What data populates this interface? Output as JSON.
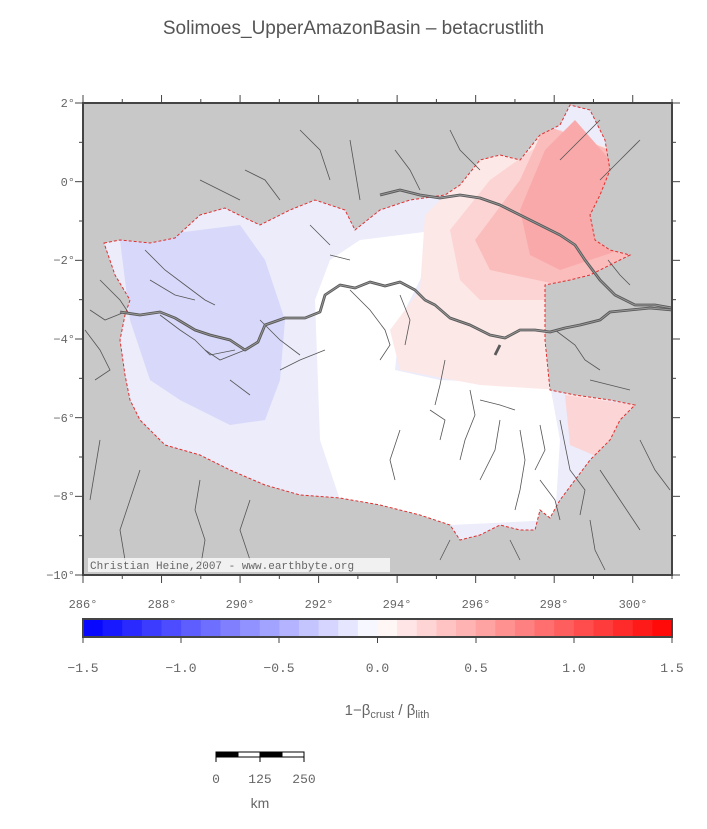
{
  "title": "Solimoes_UpperAmazonBasin – betacrustlith",
  "map": {
    "lat_ticks": [
      "2°",
      "0°",
      "−2°",
      "−4°",
      "−6°",
      "−8°",
      "−10°"
    ],
    "lon_ticks": [
      "286°",
      "288°",
      "290°",
      "292°",
      "294°",
      "296°",
      "298°",
      "300°"
    ],
    "lat_range": [
      -10,
      2
    ],
    "lon_range": [
      286,
      301
    ],
    "credit": "Christian Heine,2007 - www.earthbyte.org",
    "colors": {
      "background": "#c8c8c8",
      "basin_boundary": "#e03030",
      "rivers": "#555555",
      "frame": "#444444"
    }
  },
  "colorbar": {
    "tick_labels": [
      "−1.5",
      "−1.0",
      "−0.5",
      "0.0",
      "0.5",
      "1.0",
      "1.5"
    ],
    "range": [
      -1.5,
      1.5
    ],
    "label_prefix": "1−β",
    "label_sub1": "crust",
    "label_mid": " / β",
    "label_sub2": "lith",
    "min_color": "#0000ff",
    "mid_color": "#ffffff",
    "max_color": "#ff0000"
  },
  "scalebar": {
    "tick_labels": [
      "0",
      "125",
      "250"
    ],
    "unit": "km"
  }
}
